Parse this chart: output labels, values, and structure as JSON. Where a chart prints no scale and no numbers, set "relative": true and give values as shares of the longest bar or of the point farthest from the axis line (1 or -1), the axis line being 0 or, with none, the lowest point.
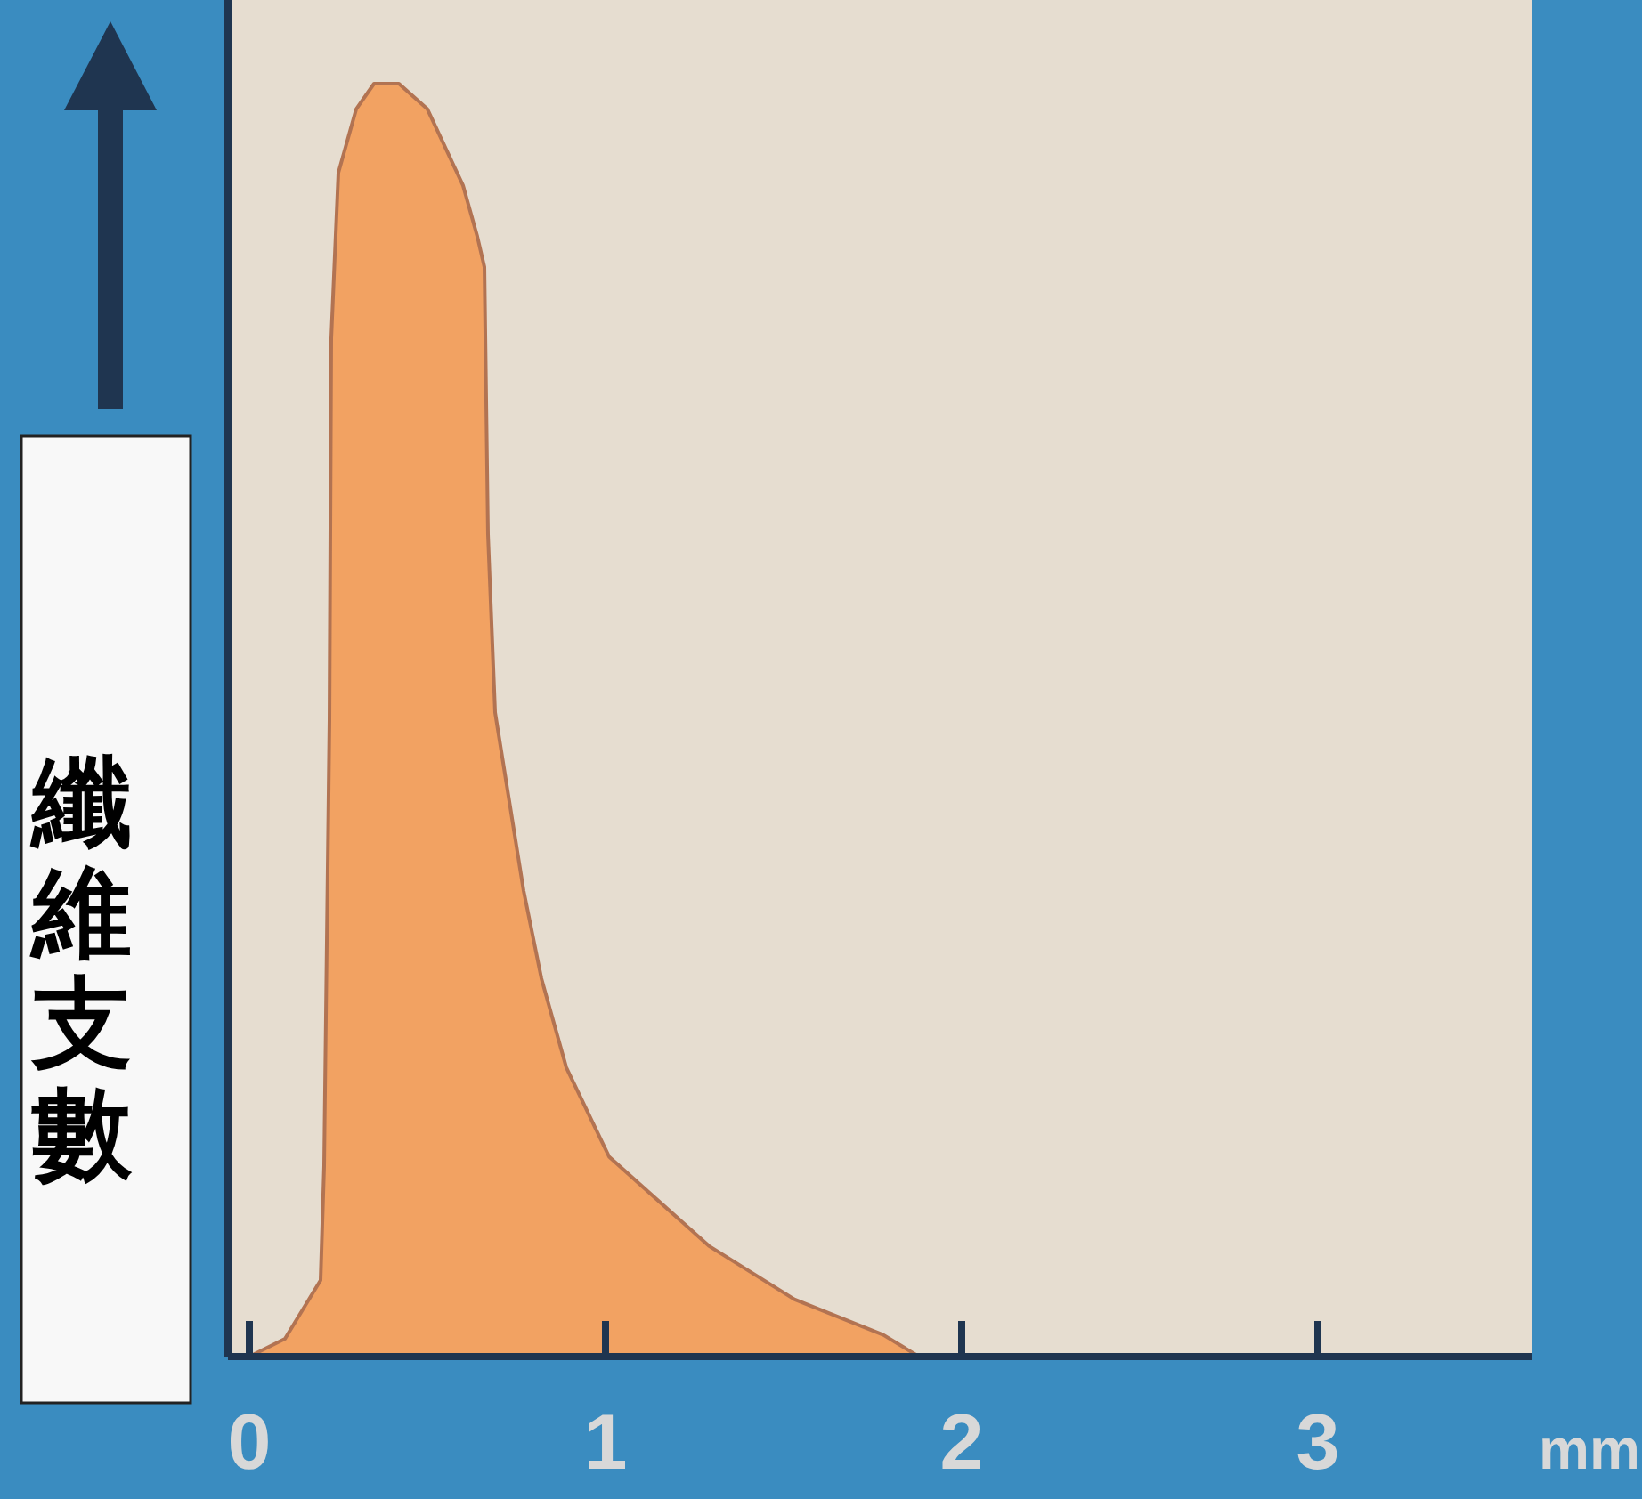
{
  "chart_data": {
    "type": "area",
    "relative": true,
    "ylabel": "纖維支數",
    "xlabel": "mm",
    "xlim": [
      -0.06,
      3.6
    ],
    "xticks": [
      0,
      1,
      2,
      3
    ],
    "grid": false,
    "series": [
      {
        "color": "#f2a262",
        "x": [
          0,
          0.1,
          0.2,
          0.21,
          0.225,
          0.23,
          0.25,
          0.3,
          0.35,
          0.42,
          0.5,
          0.6,
          0.64,
          0.66,
          0.67,
          0.69,
          0.77,
          0.82,
          0.89,
          1.01,
          1.29,
          1.53,
          1.78,
          1.88
        ],
        "values": [
          0,
          0.014,
          0.06,
          0.15,
          0.5,
          0.8,
          0.93,
          0.98,
          1.0,
          1.0,
          0.98,
          0.92,
          0.88,
          0.856,
          0.646,
          0.506,
          0.366,
          0.297,
          0.227,
          0.157,
          0.087,
          0.045,
          0.017,
          0
        ]
      }
    ]
  }
}
